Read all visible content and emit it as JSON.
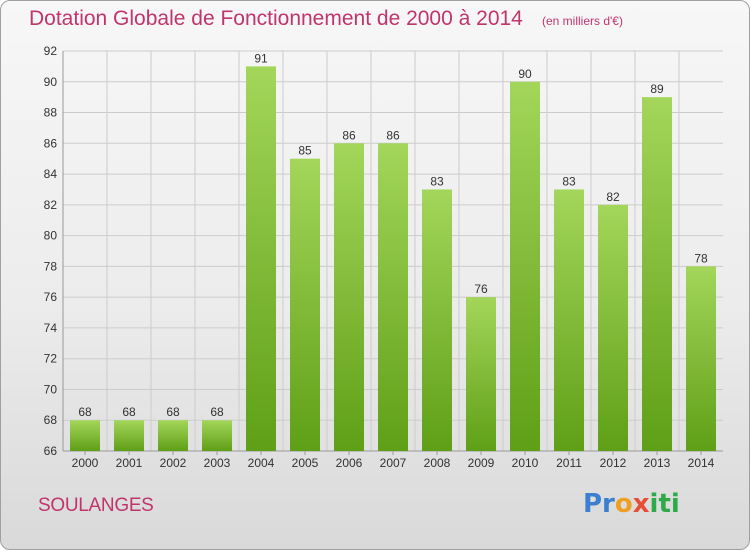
{
  "header": {
    "title": "Dotation Globale de Fonctionnement de 2000 à 2014",
    "unit_note": "(en milliers d'€)"
  },
  "footer": {
    "commune": "SOULANGES",
    "logo": "Proxiti"
  },
  "colors": {
    "title": "#c0356c",
    "bar_top": "#a3d65a",
    "bar_bottom": "#5f9f17",
    "grid": "#cccccc"
  },
  "chart_data": {
    "type": "bar",
    "title": "Dotation Globale de Fonctionnement de 2000 à 2014",
    "xlabel": "",
    "ylabel": "",
    "categories": [
      "2000",
      "2001",
      "2002",
      "2003",
      "2004",
      "2005",
      "2006",
      "2007",
      "2008",
      "2009",
      "2010",
      "2011",
      "2012",
      "2013",
      "2014"
    ],
    "values": [
      68,
      68,
      68,
      68,
      91,
      85,
      86,
      86,
      83,
      76,
      90,
      83,
      82,
      89,
      78
    ],
    "ylim": [
      66,
      92
    ],
    "yticks": [
      66,
      68,
      70,
      72,
      74,
      76,
      78,
      80,
      82,
      84,
      86,
      88,
      90,
      92
    ],
    "grid": true,
    "data_labels": true
  }
}
